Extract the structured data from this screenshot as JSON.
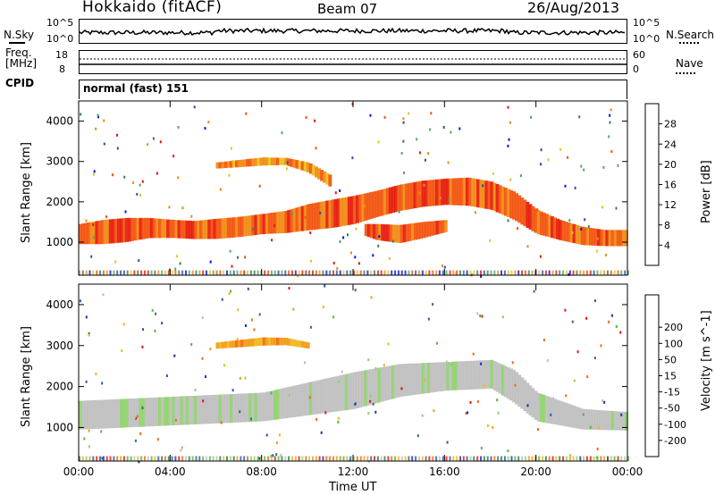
{
  "header": {
    "station": "Hokkaido (fitACF)",
    "beam": "Beam 07",
    "date": "26/Aug/2013"
  },
  "side_labels": {
    "nsky": "N.Sky",
    "freq_line1": "Freq.",
    "freq_line2": "[MHz]",
    "cpid": "CPID",
    "nsearch": "N.Search",
    "nave": "Nave",
    "cpid_value": "normal (fast) 151"
  },
  "small_axes": {
    "nsky_top": "10^5",
    "nsky_bottom": "10^0",
    "freq_top": "18",
    "freq_bottom": "8",
    "nave_top": "60",
    "nave_bottom": "0"
  },
  "colors": {
    "power": [
      "#0a14e6",
      "#2f4fa5",
      "#3c7a5a",
      "#4fa86a",
      "#e8c21a",
      "#f28a12",
      "#f3530d",
      "#e61a0a"
    ],
    "velocity": [
      "#e8150e",
      "#f26a12",
      "#f29c14",
      "#f2b61c",
      "#bfbfbf",
      "#8fd26a",
      "#4cbd3c",
      "#2e7a55",
      "#2b5aa8",
      "#1e2fb0"
    ]
  },
  "chart_data": [
    {
      "type": "heatmap",
      "name": "power",
      "ylabel": "Slant Range [km]",
      "xlabel": "",
      "xlim": [
        0,
        24
      ],
      "ylim": [
        180,
        4500
      ],
      "x_ticks": [
        "00:00",
        "04:00",
        "08:00",
        "12:00",
        "16:00",
        "20:00",
        "00:00"
      ],
      "y_ticks": [
        1000,
        2000,
        3000,
        4000
      ],
      "colorbar_label": "Power [dB]",
      "colorbar_ticks": [
        4,
        8,
        12,
        16,
        20,
        24,
        28
      ],
      "bands": [
        {
          "t": [
            0,
            1,
            2,
            3,
            4,
            5,
            6,
            7,
            8,
            9,
            10,
            11,
            12,
            13,
            14,
            15,
            16,
            17,
            18,
            19,
            20,
            21,
            22,
            23,
            24
          ],
          "center": [
            1200,
            1250,
            1300,
            1350,
            1330,
            1300,
            1330,
            1380,
            1450,
            1500,
            1620,
            1700,
            1800,
            1950,
            2100,
            2200,
            2250,
            2250,
            2150,
            1900,
            1500,
            1300,
            1150,
            1100,
            1100
          ],
          "width": [
            500,
            600,
            600,
            500,
            450,
            450,
            500,
            500,
            500,
            550,
            650,
            700,
            700,
            650,
            650,
            650,
            650,
            700,
            700,
            700,
            600,
            500,
            450,
            400,
            400
          ],
          "level": 26
        },
        {
          "t": [
            6,
            7,
            8,
            9,
            10,
            11
          ],
          "center": [
            2900,
            2950,
            3000,
            3000,
            2850,
            2500
          ],
          "width": [
            150,
            180,
            200,
            180,
            250,
            300
          ],
          "level": 22
        },
        {
          "t": [
            12.5,
            13,
            14,
            15,
            16
          ],
          "center": [
            1300,
            1250,
            1200,
            1300,
            1400
          ],
          "width": [
            300,
            400,
            450,
            400,
            300
          ],
          "level": 24
        }
      ]
    },
    {
      "type": "heatmap",
      "name": "velocity",
      "ylabel": "Slant Range [km]",
      "xlabel": "Time UT",
      "xlim": [
        0,
        24
      ],
      "ylim": [
        180,
        4500
      ],
      "x_ticks": [
        "00:00",
        "04:00",
        "08:00",
        "12:00",
        "16:00",
        "20:00",
        "00:00"
      ],
      "y_ticks": [
        1000,
        2000,
        3000,
        4000
      ],
      "colorbar_label": "Velocity [m s^-1]",
      "colorbar_ticks": [
        -200,
        -100,
        -50,
        -15,
        15,
        50,
        100,
        200
      ],
      "bands": [
        {
          "t": [
            0,
            2,
            4,
            6,
            8,
            10,
            12,
            14,
            16,
            18,
            19,
            20,
            22,
            24
          ],
          "center": [
            1300,
            1350,
            1400,
            1450,
            1500,
            1700,
            1900,
            2150,
            2250,
            2300,
            2000,
            1500,
            1200,
            1150
          ],
          "width": [
            700,
            700,
            700,
            700,
            700,
            800,
            900,
            800,
            700,
            700,
            800,
            700,
            500,
            450
          ],
          "level": 0
        },
        {
          "t": [
            6,
            7,
            8,
            9,
            10
          ],
          "center": [
            3000,
            3050,
            3100,
            3100,
            3000
          ],
          "width": [
            150,
            180,
            200,
            180,
            150
          ],
          "level": -60
        }
      ]
    }
  ]
}
